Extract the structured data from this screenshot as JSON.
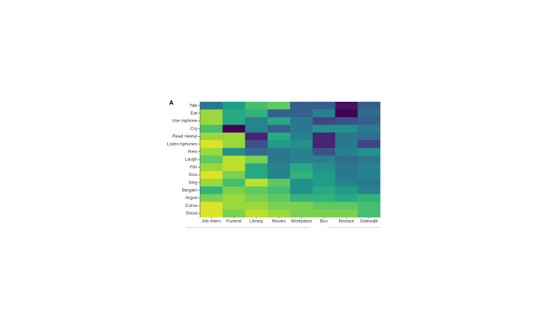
{
  "chart_data": {
    "type": "heatmap",
    "panel_label": "A",
    "rows": [
      "Talk",
      "Eat",
      "Use mphone",
      "Cry",
      "Read newsp",
      "Listen hphones",
      "Rest",
      "Laugh",
      "Flirt",
      "Kiss",
      "Sing",
      "Bargain",
      "Argue",
      "Curse",
      "Shout"
    ],
    "categories": [
      "Job interv",
      "Funeral",
      "Library",
      "Movies",
      "Workplace",
      "Bus",
      "Restaur",
      "Sidewalk"
    ],
    "colormap": "viridis",
    "zlim": [
      0,
      1
    ],
    "values": [
      [
        0.4,
        0.55,
        0.7,
        0.75,
        0.3,
        0.3,
        0.05,
        0.3
      ],
      [
        0.85,
        0.6,
        0.65,
        0.3,
        0.3,
        0.45,
        0.0,
        0.35
      ],
      [
        0.85,
        0.6,
        0.45,
        0.6,
        0.4,
        0.2,
        0.25,
        0.3
      ],
      [
        0.7,
        0.0,
        0.45,
        0.3,
        0.4,
        0.5,
        0.5,
        0.4
      ],
      [
        0.85,
        0.85,
        0.1,
        0.6,
        0.45,
        0.1,
        0.4,
        0.35
      ],
      [
        0.95,
        0.85,
        0.25,
        0.55,
        0.5,
        0.1,
        0.4,
        0.2
      ],
      [
        0.85,
        0.5,
        0.35,
        0.4,
        0.45,
        0.25,
        0.45,
        0.5
      ],
      [
        0.75,
        0.9,
        0.8,
        0.4,
        0.45,
        0.45,
        0.35,
        0.4
      ],
      [
        0.85,
        0.9,
        0.6,
        0.45,
        0.6,
        0.5,
        0.4,
        0.45
      ],
      [
        0.95,
        0.8,
        0.6,
        0.45,
        0.65,
        0.55,
        0.4,
        0.45
      ],
      [
        0.85,
        0.7,
        0.9,
        0.75,
        0.5,
        0.55,
        0.45,
        0.4
      ],
      [
        0.65,
        0.8,
        0.75,
        0.7,
        0.5,
        0.6,
        0.55,
        0.45
      ],
      [
        0.8,
        0.85,
        0.8,
        0.75,
        0.65,
        0.65,
        0.6,
        0.65
      ],
      [
        0.95,
        0.85,
        0.85,
        0.8,
        0.8,
        0.75,
        0.75,
        0.7
      ],
      [
        0.95,
        0.8,
        0.9,
        0.85,
        0.8,
        0.8,
        0.8,
        0.7
      ]
    ]
  }
}
